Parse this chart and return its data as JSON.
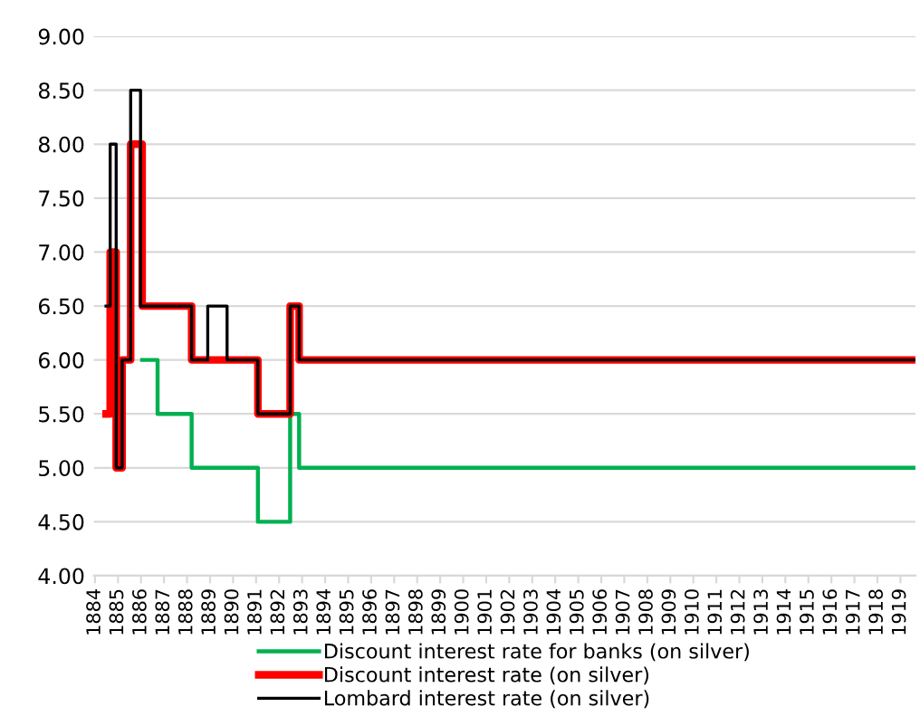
{
  "chart_data": {
    "type": "step",
    "series": [
      {
        "name": "Discount interest rate for banks (on silver)",
        "color": "#00b050",
        "x": [
          1886.05,
          1886.72,
          1888.2,
          1891.08,
          1892.48,
          1892.87,
          1919.6
        ],
        "values": [
          6.0,
          5.5,
          5.0,
          4.5,
          5.5,
          5.0,
          5.0
        ]
      },
      {
        "name": "Discount interest rate (on silver)",
        "color": "#ff0000",
        "x": [
          1884.48,
          1884.66,
          1884.92,
          1885.18,
          1885.55,
          1886.05,
          1888.2,
          1891.08,
          1892.48,
          1892.87,
          1919.6
        ],
        "values": [
          5.5,
          7.0,
          5.0,
          6.0,
          8.0,
          6.5,
          6.0,
          5.5,
          6.5,
          6.0,
          6.0
        ]
      },
      {
        "name": "Lombard interest rate (on silver)",
        "color": "#000000",
        "x": [
          1884.48,
          1884.66,
          1884.92,
          1885.18,
          1885.55,
          1885.98,
          1888.2,
          1888.9,
          1889.74,
          1891.08,
          1892.48,
          1892.87,
          1919.6
        ],
        "values": [
          6.5,
          8.0,
          5.0,
          6.0,
          8.5,
          6.5,
          6.0,
          6.5,
          6.0,
          5.5,
          6.5,
          6.0,
          6.0
        ]
      }
    ],
    "xlim": [
      1883.95,
      1919.65
    ],
    "xticks": [
      1884,
      1885,
      1886,
      1887,
      1888,
      1889,
      1890,
      1891,
      1892,
      1893,
      1894,
      1895,
      1896,
      1897,
      1898,
      1899,
      1900,
      1901,
      1902,
      1903,
      1904,
      1905,
      1906,
      1907,
      1908,
      1909,
      1910,
      1911,
      1912,
      1913,
      1914,
      1915,
      1916,
      1917,
      1918,
      1919
    ],
    "ylim": [
      4.0,
      9.0
    ],
    "yticks": [
      {
        "value": 4,
        "label": "4.00"
      },
      {
        "value": 4.5,
        "label": "4.50"
      },
      {
        "value": 5,
        "label": "5.00"
      },
      {
        "value": 5.5,
        "label": "5.50"
      },
      {
        "value": 6,
        "label": "6.00"
      },
      {
        "value": 6.5,
        "label": "6.50"
      },
      {
        "value": 7,
        "label": "7.00"
      },
      {
        "value": 7.5,
        "label": "7.50"
      },
      {
        "value": 8,
        "label": "8.00"
      },
      {
        "value": 8.5,
        "label": "8.50"
      },
      {
        "value": 9,
        "label": "9.00"
      }
    ],
    "grid": "y",
    "legend": "bottom"
  }
}
